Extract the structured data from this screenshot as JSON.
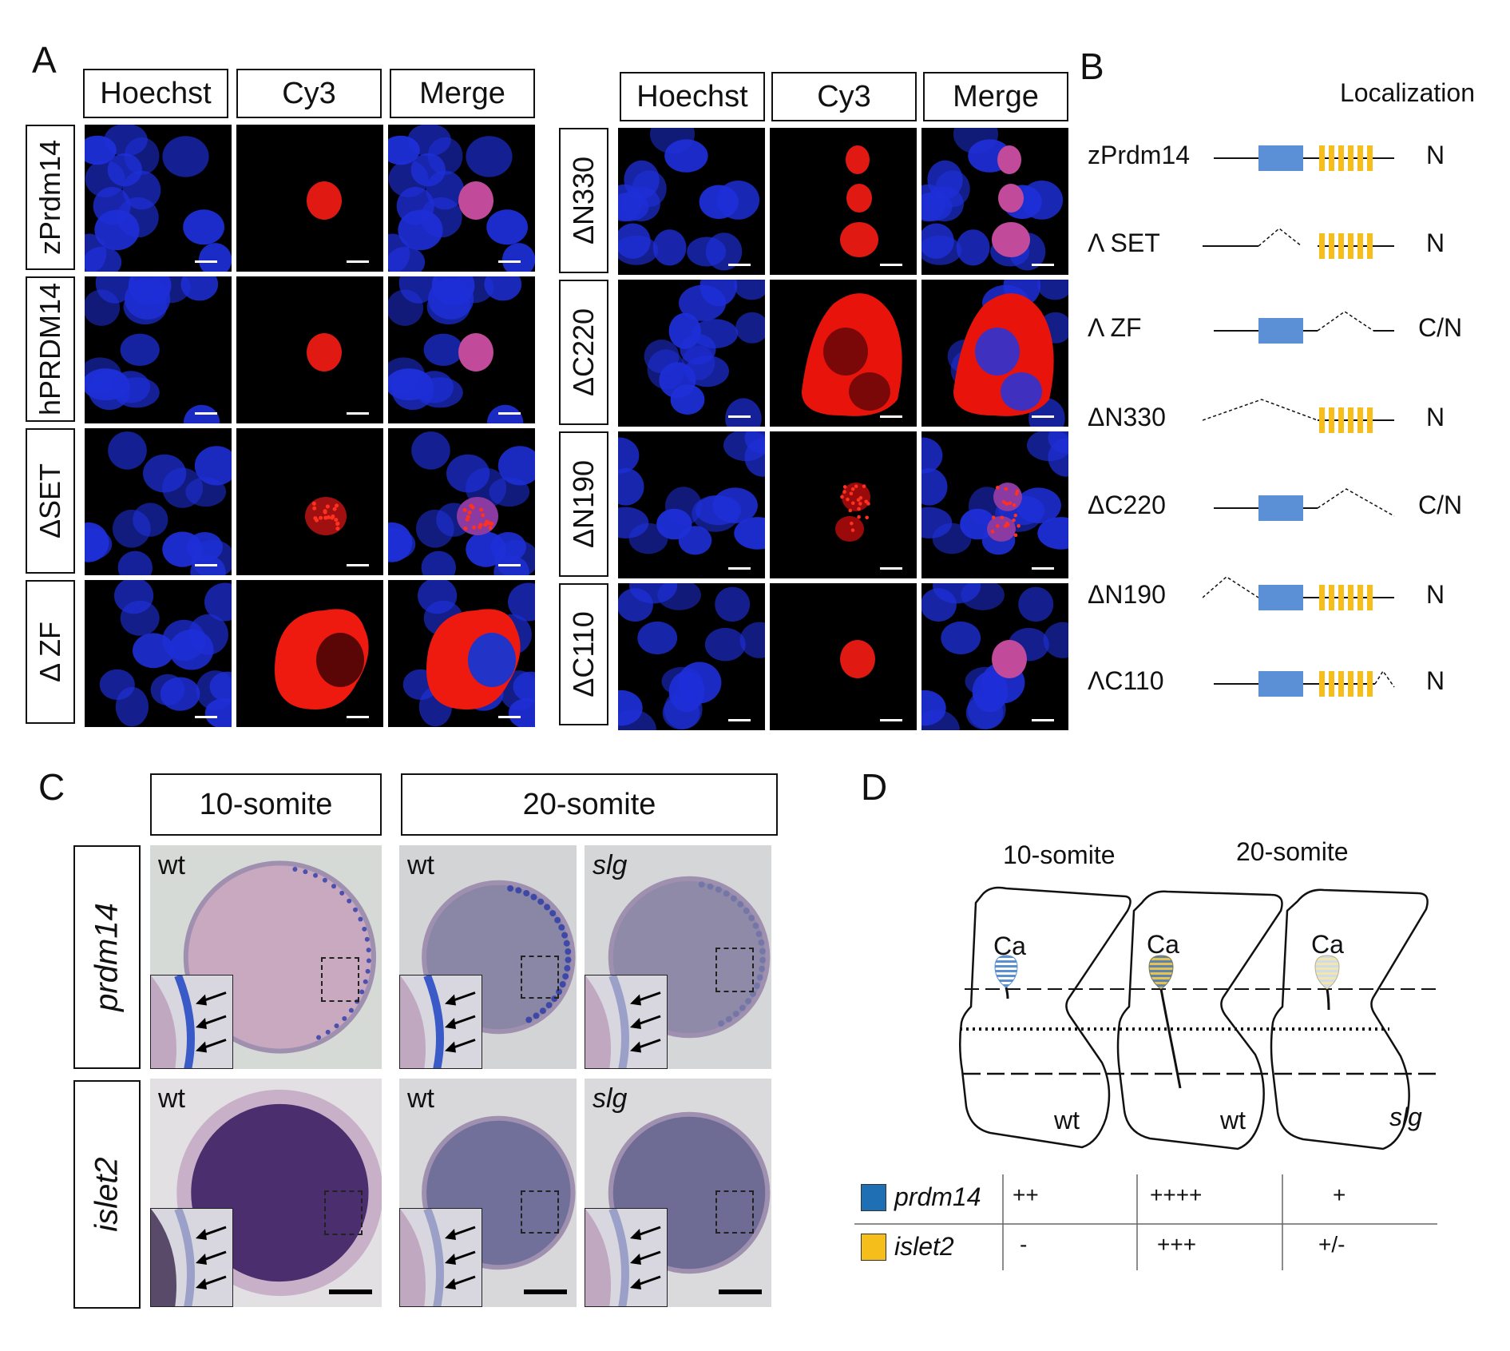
{
  "panelA": {
    "letter": "A",
    "left_headers": [
      "Hoechst",
      "Cy3",
      "Merge"
    ],
    "right_headers": [
      "Hoechst",
      "Cy3",
      "Merge"
    ],
    "left_rows": [
      "zPrdm14",
      "hPRDM14",
      "ΔSET",
      "Δ ZF"
    ],
    "right_rows": [
      "ΔN330",
      "ΔC220",
      "ΔN190",
      "ΔC110"
    ]
  },
  "panelB": {
    "letter": "B",
    "column_header": "Localization",
    "constructs": [
      {
        "name": "zPrdm14",
        "localization": "N"
      },
      {
        "name": "Λ SET",
        "localization": "N"
      },
      {
        "name": "Λ ZF",
        "localization": "C/N"
      },
      {
        "name": "ΔN330",
        "localization": "N"
      },
      {
        "name": "ΔC220",
        "localization": "C/N"
      },
      {
        "name": "ΔN190",
        "localization": "N"
      },
      {
        "name": "ΛC110",
        "localization": "N"
      }
    ],
    "colors": {
      "set_domain": "#5b8fd6",
      "zinc_finger": "#f5be1a"
    }
  },
  "panelC": {
    "letter": "C",
    "stage_headers": [
      "10-somite",
      "20-somite"
    ],
    "row_labels": [
      "prdm14",
      "islet2"
    ],
    "image_labels": [
      "wt",
      "wt",
      "slg",
      "wt",
      "wt",
      "slg"
    ]
  },
  "panelD": {
    "letter": "D",
    "stage_labels": [
      "10-somite",
      "20-somite"
    ],
    "cell_label": "Ca",
    "somite_labels": [
      "wt",
      "wt",
      "slg"
    ],
    "table_rows": [
      {
        "gene": "prdm14",
        "color": "#1f6fb5",
        "values": [
          "++",
          "++++",
          "+"
        ]
      },
      {
        "gene": "islet2",
        "color": "#f5be1a",
        "values": [
          "-",
          "+++",
          "+/-"
        ]
      }
    ]
  }
}
